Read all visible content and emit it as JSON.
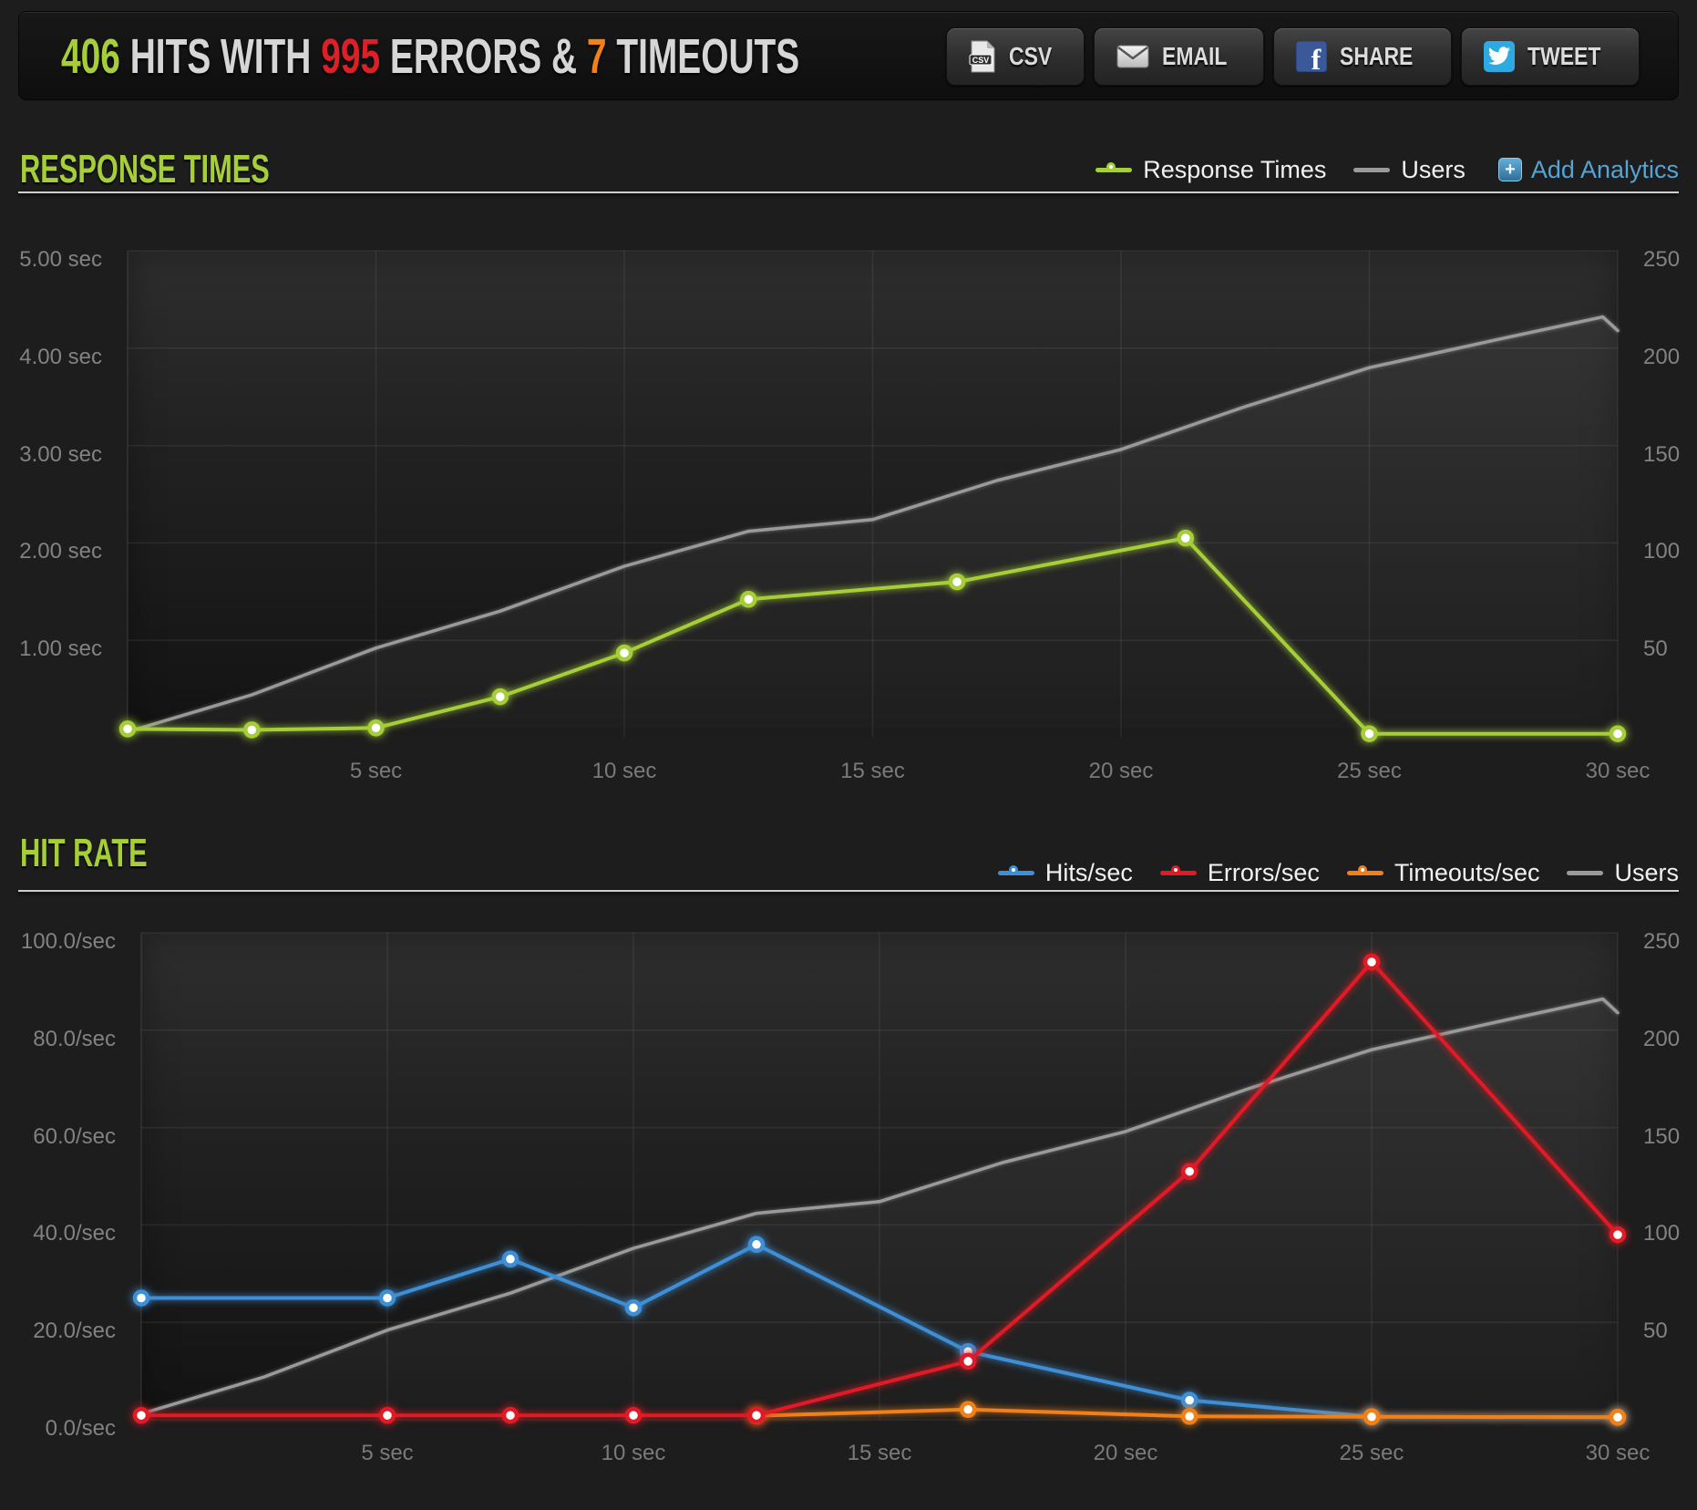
{
  "header": {
    "title": {
      "hits": "406",
      "word_hits": "HITS WITH",
      "errors": "995",
      "word_errors": "ERRORS &",
      "timeouts": "7",
      "word_timeouts": "TIMEOUTS"
    },
    "buttons": [
      {
        "label": "CSV",
        "icon": "csv-file-icon"
      },
      {
        "label": "EMAIL",
        "icon": "email-envelope-icon"
      },
      {
        "label": "SHARE",
        "icon": "facebook-icon"
      },
      {
        "label": "TWEET",
        "icon": "twitter-bird-icon"
      }
    ]
  },
  "colors": {
    "accent_green": "#a6ce39",
    "accent_red": "#dd2027",
    "accent_orange": "#f08019",
    "line_blue": "#3e8fd5",
    "users_gray": "#9a9a9a",
    "link_blue": "#54a4d4"
  },
  "sections": [
    {
      "title": "RESPONSE TIMES",
      "add_analytics_label": "Add Analytics",
      "legend": [
        {
          "label": "Response Times",
          "color": "#a6ce39",
          "style": "line-dot"
        },
        {
          "label": "Users",
          "color": "#9a9a9a",
          "style": "line"
        }
      ],
      "chart_data": {
        "type": "line",
        "x_unit": "sec",
        "x_range": [
          0,
          30
        ],
        "grid": true,
        "legend_position": "top-right",
        "x_ticks": [
          {
            "v": 5,
            "label": "5 sec"
          },
          {
            "v": 10,
            "label": "10 sec"
          },
          {
            "v": 15,
            "label": "15 sec"
          },
          {
            "v": 20,
            "label": "20 sec"
          },
          {
            "v": 25,
            "label": "25 sec"
          },
          {
            "v": 30,
            "label": "30 sec"
          }
        ],
        "left_axis": {
          "title": "response time",
          "max": 5,
          "ticks": [
            {
              "v": 1,
              "label": "1.00 sec"
            },
            {
              "v": 2,
              "label": "2.00 sec"
            },
            {
              "v": 3,
              "label": "3.00 sec"
            },
            {
              "v": 4,
              "label": "4.00 sec"
            },
            {
              "v": 5,
              "label": "5.00 sec"
            }
          ]
        },
        "right_axis": {
          "title": "users",
          "max": 250,
          "ticks": [
            {
              "v": 50,
              "label": "50"
            },
            {
              "v": 100,
              "label": "100"
            },
            {
              "v": 150,
              "label": "150"
            },
            {
              "v": 200,
              "label": "200"
            },
            {
              "v": 250,
              "label": "250"
            }
          ]
        },
        "series": [
          {
            "name": "Users",
            "axis": "right",
            "color": "#9a9a9a",
            "area": true,
            "markers": false,
            "points": [
              [
                0,
                3
              ],
              [
                2.5,
                22
              ],
              [
                5,
                46
              ],
              [
                7.5,
                65
              ],
              [
                10,
                88
              ],
              [
                12.5,
                106
              ],
              [
                15,
                112
              ],
              [
                17.5,
                132
              ],
              [
                20,
                148
              ],
              [
                22.5,
                170
              ],
              [
                25,
                190
              ],
              [
                27.5,
                204
              ],
              [
                29.7,
                216
              ],
              [
                30,
                209
              ]
            ]
          },
          {
            "name": "Response Times",
            "axis": "left",
            "color": "#a6ce39",
            "area": false,
            "markers": true,
            "points": [
              [
                0,
                0.09
              ],
              [
                2.5,
                0.08
              ],
              [
                5,
                0.1
              ],
              [
                7.5,
                0.42
              ],
              [
                10,
                0.87
              ],
              [
                12.5,
                1.42
              ],
              [
                16.7,
                1.6
              ],
              [
                21.3,
                2.05
              ],
              [
                25,
                0.04
              ],
              [
                30,
                0.04
              ]
            ]
          }
        ]
      }
    },
    {
      "title": "HIT RATE",
      "legend": [
        {
          "label": "Hits/sec",
          "color": "#3e8fd5",
          "style": "line-dot"
        },
        {
          "label": "Errors/sec",
          "color": "#e01b25",
          "style": "line-dot"
        },
        {
          "label": "Timeouts/sec",
          "color": "#f08019",
          "style": "line-dot"
        },
        {
          "label": "Users",
          "color": "#9a9a9a",
          "style": "line"
        }
      ],
      "chart_data": {
        "type": "line",
        "x_unit": "sec",
        "x_range": [
          0,
          30
        ],
        "grid": true,
        "legend_position": "top-right",
        "x_ticks": [
          {
            "v": 5,
            "label": "5 sec"
          },
          {
            "v": 10,
            "label": "10 sec"
          },
          {
            "v": 15,
            "label": "15 sec"
          },
          {
            "v": 20,
            "label": "20 sec"
          },
          {
            "v": 25,
            "label": "25 sec"
          },
          {
            "v": 30,
            "label": "30 sec"
          }
        ],
        "left_axis": {
          "title": "rate",
          "max": 100,
          "ticks": [
            {
              "v": 0,
              "label": "0.0/sec"
            },
            {
              "v": 20,
              "label": "20.0/sec"
            },
            {
              "v": 40,
              "label": "40.0/sec"
            },
            {
              "v": 60,
              "label": "60.0/sec"
            },
            {
              "v": 80,
              "label": "80.0/sec"
            },
            {
              "v": 100,
              "label": "100.0/sec"
            }
          ]
        },
        "right_axis": {
          "title": "users",
          "max": 250,
          "ticks": [
            {
              "v": 50,
              "label": "50"
            },
            {
              "v": 100,
              "label": "100"
            },
            {
              "v": 150,
              "label": "150"
            },
            {
              "v": 200,
              "label": "200"
            },
            {
              "v": 250,
              "label": "250"
            }
          ]
        },
        "series": [
          {
            "name": "Users",
            "axis": "right",
            "color": "#9a9a9a",
            "area": true,
            "markers": false,
            "points": [
              [
                0,
                3
              ],
              [
                2.5,
                22
              ],
              [
                5,
                46
              ],
              [
                7.5,
                65
              ],
              [
                10,
                88
              ],
              [
                12.5,
                106
              ],
              [
                15,
                112
              ],
              [
                17.5,
                132
              ],
              [
                20,
                148
              ],
              [
                22.5,
                170
              ],
              [
                25,
                190
              ],
              [
                27.5,
                204
              ],
              [
                29.7,
                216
              ],
              [
                30,
                209
              ]
            ]
          },
          {
            "name": "Hits/sec",
            "axis": "left",
            "color": "#3e8fd5",
            "area": false,
            "markers": true,
            "points": [
              [
                0,
                25
              ],
              [
                5,
                25
              ],
              [
                7.5,
                33
              ],
              [
                10,
                23
              ],
              [
                12.5,
                36
              ],
              [
                16.8,
                14
              ],
              [
                21.3,
                4
              ],
              [
                25,
                0.6
              ],
              [
                30,
                0.5
              ]
            ]
          },
          {
            "name": "Timeouts/sec",
            "axis": "left",
            "color": "#f08019",
            "area": false,
            "markers": true,
            "points": [
              [
                12.5,
                0.8
              ],
              [
                16.8,
                2.1
              ],
              [
                21.3,
                0.7
              ],
              [
                25,
                0.6
              ],
              [
                30,
                0.5
              ]
            ]
          },
          {
            "name": "Errors/sec",
            "axis": "left",
            "color": "#e01b25",
            "area": false,
            "markers": true,
            "points": [
              [
                0,
                0.9
              ],
              [
                5,
                0.9
              ],
              [
                7.5,
                0.9
              ],
              [
                10,
                0.9
              ],
              [
                12.5,
                0.9
              ],
              [
                16.8,
                12
              ],
              [
                21.3,
                51
              ],
              [
                25,
                94
              ],
              [
                30,
                38
              ]
            ]
          }
        ]
      }
    }
  ]
}
